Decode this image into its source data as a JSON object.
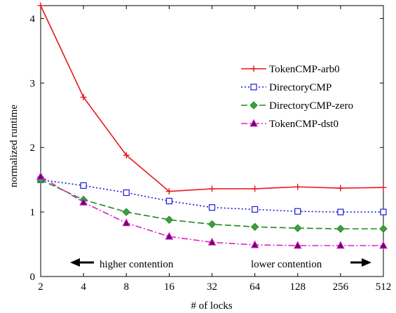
{
  "chart_data": {
    "type": "line",
    "title": "",
    "xlabel": "# of locks",
    "ylabel": "normalized runtime",
    "categories": [
      "2",
      "4",
      "8",
      "16",
      "32",
      "64",
      "128",
      "256",
      "512"
    ],
    "y_ticks": [
      "0",
      "1",
      "2",
      "3",
      "4"
    ],
    "ylim": [
      0,
      4.2
    ],
    "grid": false,
    "legend_position": "right",
    "series": [
      {
        "name": "TokenCMP-arb0",
        "values": [
          4.2,
          2.78,
          1.88,
          1.32,
          1.36,
          1.36,
          1.39,
          1.37,
          1.38
        ],
        "color": "#e8141c",
        "dash": "solid",
        "marker": "plus"
      },
      {
        "name": "DirectoryCMP",
        "values": [
          1.5,
          1.41,
          1.3,
          1.17,
          1.07,
          1.04,
          1.01,
          1.0,
          1.0
        ],
        "color": "#1a1ad6",
        "dash": "dotted",
        "marker": "square"
      },
      {
        "name": "DirectoryCMP-zero",
        "values": [
          1.5,
          1.19,
          1.0,
          0.88,
          0.81,
          0.77,
          0.75,
          0.74,
          0.74
        ],
        "color": "#1f8a1f",
        "dash": "dashed",
        "marker": "diamond"
      },
      {
        "name": "TokenCMP-dst0",
        "values": [
          1.55,
          1.15,
          0.83,
          0.62,
          0.53,
          0.49,
          0.48,
          0.48,
          0.48
        ],
        "color": "#e020d0",
        "dash": "dashdot",
        "marker": "triangle"
      }
    ],
    "annotations": {
      "left": "higher contention",
      "right": "lower contention"
    }
  }
}
